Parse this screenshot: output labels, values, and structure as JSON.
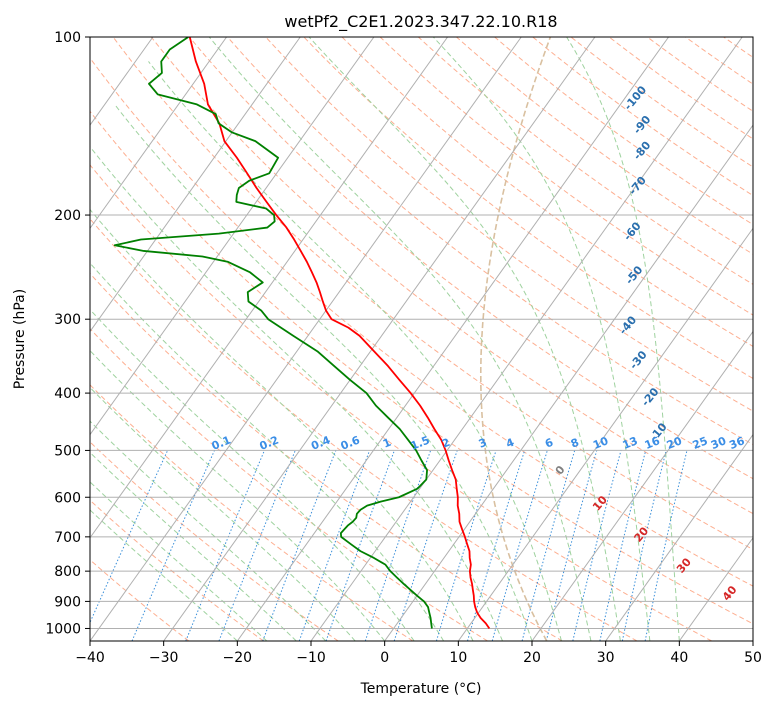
{
  "chart_data": {
    "type": "skew-t",
    "title": "wetPf2_C2E1.2023.347.22.10.R18",
    "xlabel": "Temperature (°C)",
    "ylabel": "Pressure (hPa)",
    "xlim": [
      -40,
      50
    ],
    "ylim_hpa": [
      1050,
      100
    ],
    "y_scale": "log",
    "grid": true,
    "x_ticks": [
      "−40",
      "−30",
      "−20",
      "−10",
      "0",
      "10",
      "20",
      "30",
      "40",
      "50"
    ],
    "x_tick_values": [
      -40,
      -30,
      -20,
      -10,
      0,
      10,
      20,
      30,
      40,
      50
    ],
    "y_ticks": [
      "100",
      "200",
      "300",
      "400",
      "500",
      "600",
      "700",
      "800",
      "900",
      "1000"
    ],
    "y_tick_values": [
      100,
      200,
      300,
      400,
      500,
      600,
      700,
      800,
      900,
      1000
    ],
    "colors": {
      "temperature": "#ff0000",
      "dewpoint": "#008000",
      "isotherm": "#b0b0b0",
      "dry_adiabat": "#fdaf91",
      "moist_adiabat": "#9fd29f",
      "mixing_ratio": "#3a8fd9",
      "lcl_curve": "#d9c0a0",
      "isotherm_label": "#2a6fae",
      "mixing_ratio_label": "#3b8ee6",
      "moist_label_zero": "#808080",
      "moist_label": "#d62728"
    },
    "isotherm_labels": [
      {
        "p": 128,
        "x": -18,
        "label": "-100"
      },
      {
        "p": 142,
        "x": -14.5,
        "label": "-90"
      },
      {
        "p": 157,
        "x": -12,
        "label": "-80"
      },
      {
        "p": 180,
        "x": -9.2,
        "label": "-70"
      },
      {
        "p": 215,
        "x": -5.5,
        "label": "-60"
      },
      {
        "p": 255,
        "x": -1,
        "label": "-50"
      },
      {
        "p": 310,
        "x": 3,
        "label": "-40"
      },
      {
        "p": 355,
        "x": 7.8,
        "label": "-30"
      },
      {
        "p": 410,
        "x": 13,
        "label": "-20"
      },
      {
        "p": 470,
        "x": 17.5,
        "label": "-10"
      }
    ],
    "mixing_ratio_labels": [
      "0.1",
      "0.2",
      "0.4",
      "0.6",
      "1",
      "1.5",
      "2",
      "3",
      "4",
      "6",
      "8",
      "10",
      "13",
      "16",
      "20",
      "25",
      "30",
      "36"
    ],
    "mixing_ratio_label_x": [
      -22,
      -15.5,
      -8.5,
      -4.5,
      0.5,
      5,
      8.5,
      13.5,
      17.2,
      22.5,
      26,
      29.5,
      33.5,
      36.5,
      39.5,
      43,
      45.5,
      48
    ],
    "moist_labels": [
      {
        "p": 545,
        "x": 24.2,
        "label": "0"
      },
      {
        "p": 620,
        "x": 29.6,
        "label": "10"
      },
      {
        "p": 700,
        "x": 35.2,
        "label": "20"
      },
      {
        "p": 790,
        "x": 41,
        "label": "30"
      },
      {
        "p": 880,
        "x": 47.2,
        "label": "40"
      }
    ],
    "series": [
      {
        "name": "Temperature",
        "p": [
          1000,
          980,
          960,
          940,
          920,
          900,
          880,
          860,
          840,
          820,
          800,
          780,
          760,
          740,
          720,
          700,
          680,
          660,
          640,
          620,
          600,
          580,
          560,
          540,
          520,
          500,
          480,
          460,
          440,
          420,
          400,
          380,
          360,
          340,
          320,
          310,
          300,
          290,
          280,
          270,
          260,
          250,
          240,
          230,
          220,
          210,
          200,
          190,
          180,
          170,
          160,
          150,
          140,
          130,
          120,
          110,
          100
        ],
        "t": [
          13.0,
          12.0,
          10.8,
          9.8,
          9.0,
          8.3,
          7.7,
          7.0,
          6.3,
          5.5,
          4.8,
          4.3,
          3.5,
          2.8,
          1.8,
          0.8,
          -0.3,
          -1.4,
          -2.2,
          -3.2,
          -4.0,
          -5.0,
          -6.0,
          -7.4,
          -8.8,
          -10.2,
          -11.8,
          -13.8,
          -15.8,
          -18.0,
          -20.5,
          -23.3,
          -26.2,
          -29.5,
          -33.0,
          -35.3,
          -38.4,
          -40.0,
          -41.3,
          -42.6,
          -44.0,
          -45.6,
          -47.3,
          -49.2,
          -51.2,
          -53.4,
          -56.0,
          -58.6,
          -61.3,
          -64.0,
          -66.9,
          -70.2,
          -72.6,
          -76.0,
          -78.5,
          -81.8,
          -85.0
        ]
      },
      {
        "name": "Dewpoint",
        "p": [
          1000,
          980,
          960,
          940,
          920,
          900,
          880,
          860,
          840,
          820,
          800,
          780,
          760,
          740,
          720,
          700,
          690,
          680,
          670,
          660,
          650,
          640,
          630,
          620,
          610,
          600,
          580,
          560,
          540,
          520,
          500,
          480,
          460,
          440,
          420,
          400,
          380,
          360,
          340,
          320,
          300,
          290,
          280,
          270,
          260,
          250,
          240,
          235,
          230,
          225,
          220,
          215,
          210,
          205,
          200,
          195,
          190,
          185,
          180,
          175,
          170,
          160,
          150,
          145,
          140,
          135,
          130,
          125,
          120,
          115,
          110,
          105,
          100
        ],
        "t": [
          5.2,
          4.6,
          4.0,
          3.3,
          2.6,
          1.5,
          0.0,
          -1.5,
          -3.0,
          -4.5,
          -6.0,
          -7.3,
          -9.5,
          -12.0,
          -14.0,
          -16.0,
          -16.4,
          -16.3,
          -16.2,
          -15.9,
          -15.8,
          -16.1,
          -16.0,
          -15.5,
          -14.0,
          -12.0,
          -10.3,
          -10.0,
          -10.8,
          -12.5,
          -14.2,
          -16.3,
          -18.5,
          -21.2,
          -24.0,
          -26.5,
          -30.0,
          -33.5,
          -37.2,
          -42.0,
          -47.0,
          -48.8,
          -51.4,
          -52.4,
          -51.3,
          -54.0,
          -58.0,
          -62.0,
          -70.5,
          -75.0,
          -72.0,
          -62.0,
          -56.0,
          -55.6,
          -56.3,
          -58.0,
          -62.7,
          -63.3,
          -63.7,
          -63.0,
          -61.0,
          -61.3,
          -66.0,
          -70.0,
          -72.7,
          -74.0,
          -77.5,
          -83.8,
          -86.0,
          -85.3,
          -86.5,
          -86.5,
          -85.2
        ]
      }
    ]
  }
}
